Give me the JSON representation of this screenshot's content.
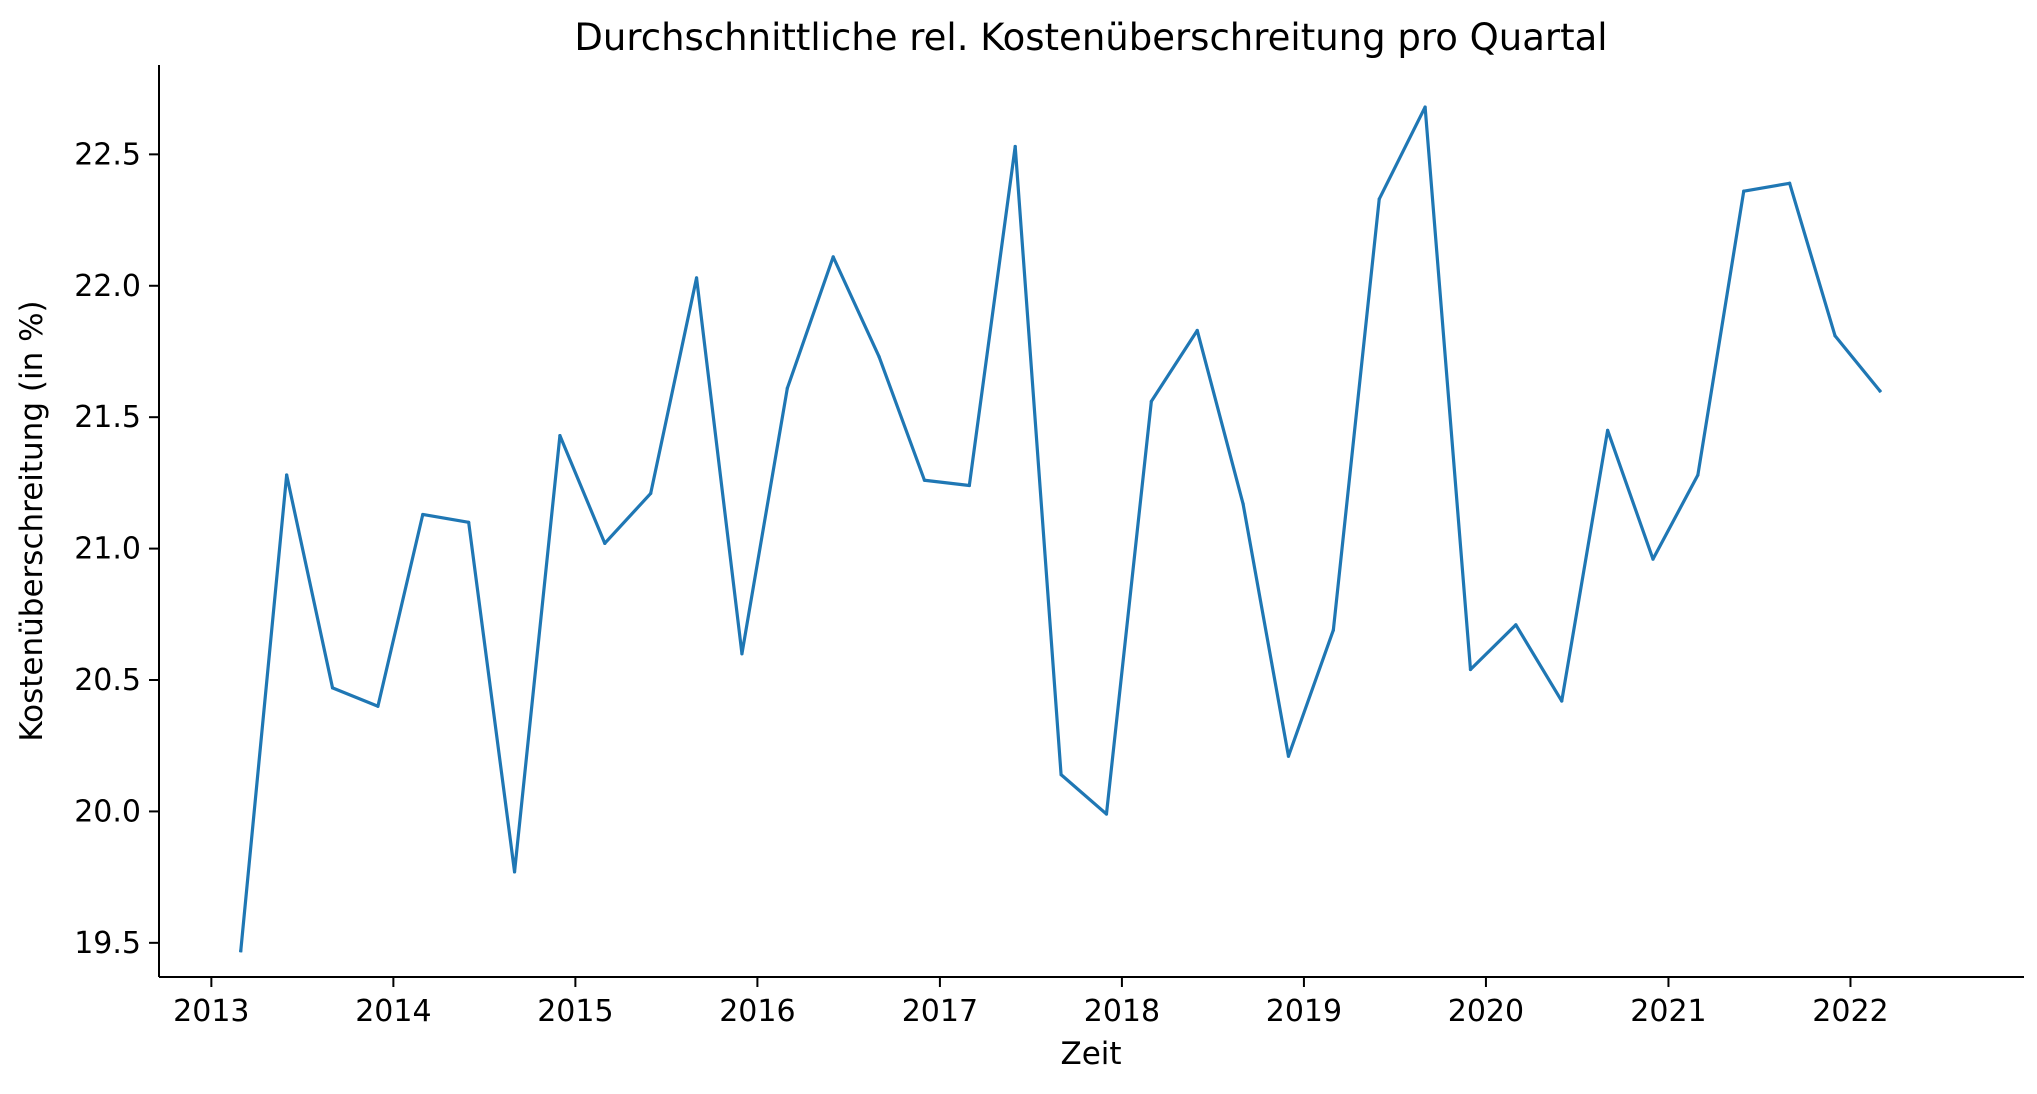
{
  "chart_data": {
    "type": "line",
    "title": "Durchschnittliche rel. Kostenüberschreitung pro Quartal",
    "xlabel": "Zeit",
    "ylabel": "Kostenüberschreitung (in %)",
    "xlim": [
      "2012-09-18",
      "2022-12-15"
    ],
    "ylim": [
      19.37,
      22.84
    ],
    "x_ticks": [
      "2013",
      "2014",
      "2015",
      "2016",
      "2017",
      "2018",
      "2019",
      "2020",
      "2021",
      "2022"
    ],
    "y_ticks": [
      "19.5",
      "20.0",
      "20.5",
      "21.0",
      "21.5",
      "22.0",
      "22.5"
    ],
    "grid": false,
    "legend": "none",
    "colors": {
      "line": "#1f77b4",
      "axes": "#000000"
    },
    "series": [
      {
        "x": [
          "2013-03-01",
          "2013-06-01",
          "2013-09-01",
          "2013-12-01",
          "2014-03-01",
          "2014-06-01",
          "2014-09-01",
          "2014-12-01",
          "2015-03-01",
          "2015-06-01",
          "2015-09-01",
          "2015-12-01",
          "2016-03-01",
          "2016-06-01",
          "2016-09-01",
          "2016-12-01",
          "2017-03-01",
          "2017-06-01",
          "2017-09-01",
          "2017-12-01",
          "2018-03-01",
          "2018-06-01",
          "2018-09-01",
          "2018-12-01",
          "2019-03-01",
          "2019-06-01",
          "2019-09-01",
          "2019-12-01",
          "2020-03-01",
          "2020-06-01",
          "2020-09-01",
          "2020-12-01",
          "2021-03-01",
          "2021-06-01",
          "2021-09-01",
          "2021-12-01",
          "2022-03-01"
        ],
        "values": [
          19.47,
          21.28,
          20.47,
          20.4,
          21.13,
          21.1,
          19.77,
          21.43,
          21.02,
          21.21,
          22.03,
          20.6,
          21.61,
          22.11,
          21.73,
          21.26,
          21.24,
          22.53,
          20.14,
          19.99,
          21.56,
          21.83,
          21.17,
          20.21,
          20.69,
          22.33,
          22.68,
          20.54,
          20.71,
          20.42,
          21.45,
          20.96,
          21.28,
          22.36,
          22.39,
          21.81,
          21.6
        ]
      }
    ]
  }
}
